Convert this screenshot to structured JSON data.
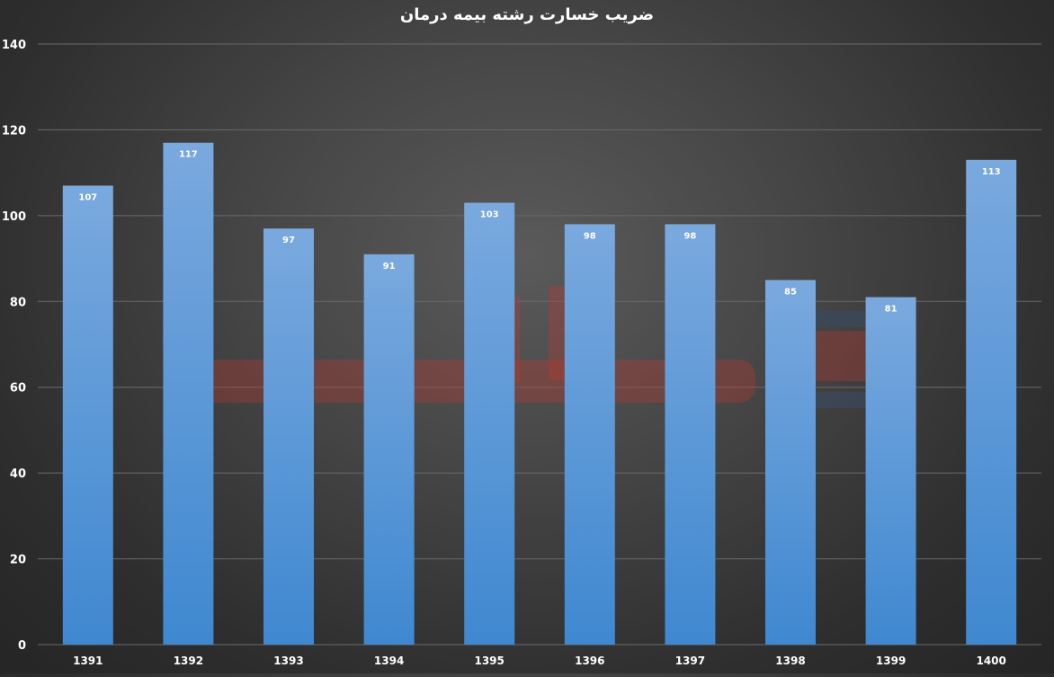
{
  "chart_data": {
    "type": "bar",
    "title": "ضریب خسارت رشته بیمه درمان",
    "categories": [
      "1391",
      "1392",
      "1393",
      "1394",
      "1395",
      "1396",
      "1397",
      "1398",
      "1399",
      "1400"
    ],
    "values": [
      107,
      117,
      97,
      91,
      103,
      98,
      98,
      85,
      81,
      113
    ],
    "xlabel": "",
    "ylabel": "",
    "ylim": [
      0,
      140
    ],
    "yticks": [
      0,
      20,
      40,
      60,
      80,
      100,
      120,
      140
    ],
    "grid": true,
    "legend": "none",
    "data_labels": true
  },
  "colors": {
    "bar_top": "#7aa9de",
    "bar_bottom": "#3f88d0",
    "grid": "#6a6a6a",
    "text": "#ffffff",
    "watermark": "#c0392b"
  }
}
